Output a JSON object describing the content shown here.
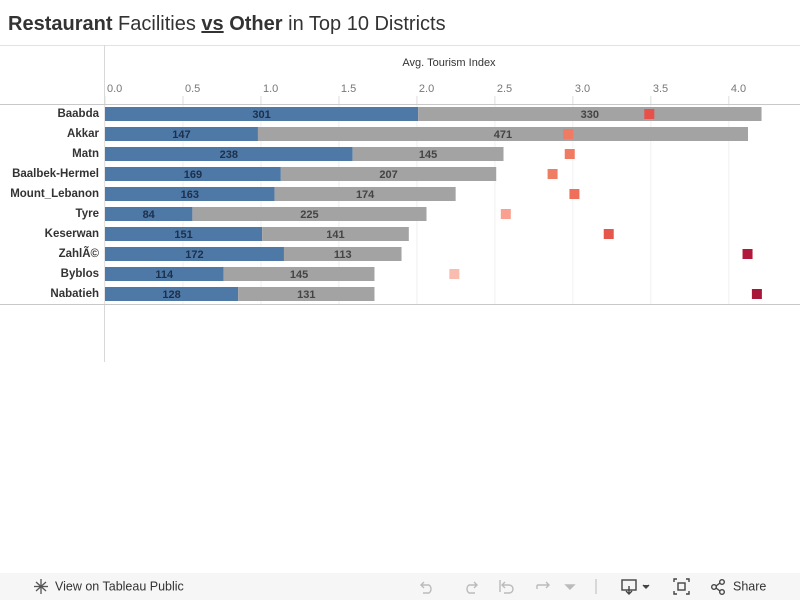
{
  "chart_data": {
    "type": "bar",
    "title_parts": [
      "Restaurant",
      "Facilities",
      "vs",
      "Other",
      "in Top 10 Districts"
    ],
    "x_label": "Avg. Tourism Index",
    "categories": [
      "Baabda",
      "Akkar",
      "Matn",
      "Baalbek-Hermel",
      "Mount_Lebanon",
      "Tyre",
      "Keserwan",
      "ZahlÃ©",
      "Byblos",
      "Nabatieh"
    ],
    "series": [
      {
        "color": "#4e79a7",
        "label_color": "#1d2f4a",
        "values": [
          301,
          147,
          238,
          169,
          163,
          84,
          151,
          172,
          114,
          128
        ]
      },
      {
        "color": "#a3a3a3",
        "label_color": "#444444",
        "values": [
          330,
          471,
          145,
          207,
          174,
          225,
          141,
          113,
          145,
          131
        ]
      }
    ],
    "bar_xlim": [
      0,
      667
    ],
    "tourism_index": {
      "values": [
        3.49,
        2.97,
        2.98,
        2.87,
        3.01,
        2.57,
        3.23,
        4.12,
        2.24,
        4.18
      ],
      "colors": [
        "#e8514a",
        "#f07a62",
        "#f07a62",
        "#ef7d63",
        "#f06f5a",
        "#f9a090",
        "#e4574a",
        "#b2183b",
        "#fbbcb0",
        "#a8173a"
      ]
    },
    "xlim": [
      0,
      4.45
    ],
    "xticks": [
      {
        "value": 0,
        "label": "0.0"
      },
      0.5,
      {
        "value": 1,
        "label": "1.0"
      },
      1.5,
      {
        "value": 2,
        "label": "2.0"
      },
      2.5,
      {
        "value": 3,
        "label": "3.0"
      },
      3.5,
      {
        "value": 4,
        "label": "4.0"
      }
    ],
    "grid": true
  },
  "toolbar": {
    "view_label": "View on Tableau Public",
    "share_label": "Share"
  }
}
